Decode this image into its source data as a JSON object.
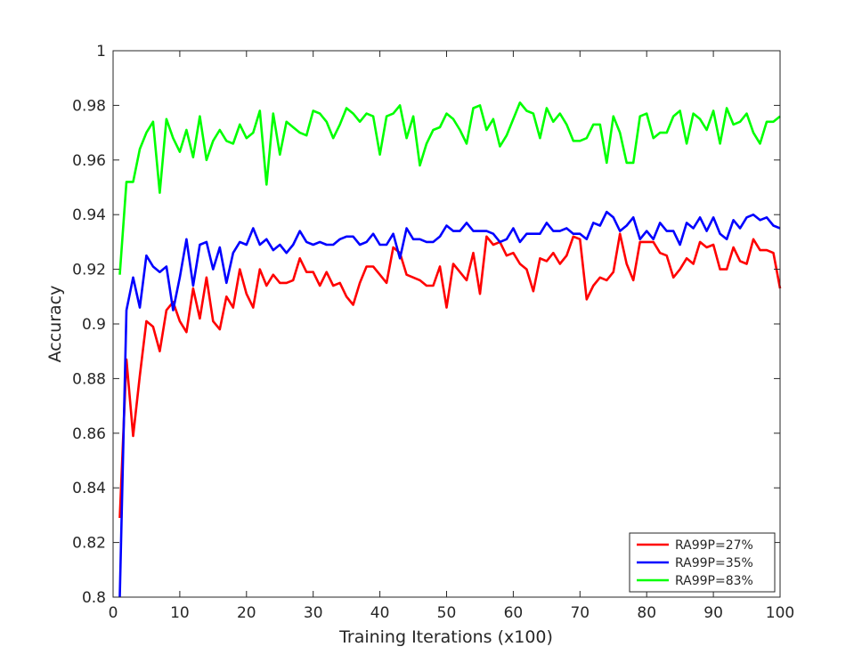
{
  "chart_data": {
    "type": "line",
    "title": "",
    "xlabel": "Training Iterations (x100)",
    "ylabel": "Accuracy",
    "xlim": [
      0,
      100
    ],
    "ylim": [
      0.8,
      1
    ],
    "x_ticks": [
      0,
      10,
      20,
      30,
      40,
      50,
      60,
      70,
      80,
      90,
      100
    ],
    "y_ticks": [
      0.8,
      0.82,
      0.84,
      0.86,
      0.88,
      0.9,
      0.92,
      0.94,
      0.96,
      0.98,
      1
    ],
    "x_tick_labels": [
      "0",
      "10",
      "20",
      "30",
      "40",
      "50",
      "60",
      "70",
      "80",
      "90",
      "100"
    ],
    "y_tick_labels": [
      "0.8",
      "0.82",
      "0.84",
      "0.86",
      "0.88",
      "0.9",
      "0.92",
      "0.94",
      "0.96",
      "0.98",
      "1"
    ],
    "grid": false,
    "legend_position": "bottom-right",
    "x": [
      1,
      2,
      3,
      4,
      5,
      6,
      7,
      8,
      9,
      10,
      11,
      12,
      13,
      14,
      15,
      16,
      17,
      18,
      19,
      20,
      21,
      22,
      23,
      24,
      25,
      26,
      27,
      28,
      29,
      30,
      31,
      32,
      33,
      34,
      35,
      36,
      37,
      38,
      39,
      40,
      41,
      42,
      43,
      44,
      45,
      46,
      47,
      48,
      49,
      50,
      51,
      52,
      53,
      54,
      55,
      56,
      57,
      58,
      59,
      60,
      61,
      62,
      63,
      64,
      65,
      66,
      67,
      68,
      69,
      70,
      71,
      72,
      73,
      74,
      75,
      76,
      77,
      78,
      79,
      80,
      81,
      82,
      83,
      84,
      85,
      86,
      87,
      88,
      89,
      90,
      91,
      92,
      93,
      94,
      95,
      96,
      97,
      98,
      99,
      100
    ],
    "series": [
      {
        "name": "RA99P=27%",
        "color": "#ff0000",
        "values": [
          0.829,
          0.887,
          0.859,
          0.881,
          0.901,
          0.899,
          0.89,
          0.905,
          0.908,
          0.901,
          0.897,
          0.913,
          0.902,
          0.917,
          0.901,
          0.898,
          0.91,
          0.906,
          0.92,
          0.911,
          0.906,
          0.92,
          0.914,
          0.918,
          0.915,
          0.915,
          0.916,
          0.924,
          0.919,
          0.919,
          0.914,
          0.919,
          0.914,
          0.915,
          0.91,
          0.907,
          0.915,
          0.921,
          0.921,
          0.918,
          0.915,
          0.928,
          0.926,
          0.918,
          0.917,
          0.916,
          0.914,
          0.914,
          0.921,
          0.906,
          0.922,
          0.919,
          0.916,
          0.926,
          0.911,
          0.932,
          0.929,
          0.93,
          0.925,
          0.926,
          0.922,
          0.92,
          0.912,
          0.924,
          0.923,
          0.926,
          0.922,
          0.925,
          0.932,
          0.931,
          0.909,
          0.914,
          0.917,
          0.916,
          0.919,
          0.933,
          0.922,
          0.916,
          0.93,
          0.93,
          0.93,
          0.926,
          0.925,
          0.917,
          0.92,
          0.924,
          0.922,
          0.93,
          0.928,
          0.929,
          0.92,
          0.92,
          0.928,
          0.923,
          0.922,
          0.931,
          0.927,
          0.927,
          0.926,
          0.913
        ]
      },
      {
        "name": "RA99P=35%",
        "color": "#0000ff",
        "values": [
          0.8,
          0.905,
          0.917,
          0.906,
          0.925,
          0.921,
          0.919,
          0.921,
          0.905,
          0.917,
          0.931,
          0.914,
          0.929,
          0.93,
          0.92,
          0.928,
          0.915,
          0.926,
          0.93,
          0.929,
          0.935,
          0.929,
          0.931,
          0.927,
          0.929,
          0.926,
          0.929,
          0.934,
          0.93,
          0.929,
          0.93,
          0.929,
          0.929,
          0.931,
          0.932,
          0.932,
          0.929,
          0.93,
          0.933,
          0.929,
          0.929,
          0.933,
          0.924,
          0.935,
          0.931,
          0.931,
          0.93,
          0.93,
          0.932,
          0.936,
          0.934,
          0.934,
          0.937,
          0.934,
          0.934,
          0.934,
          0.933,
          0.93,
          0.931,
          0.935,
          0.93,
          0.933,
          0.933,
          0.933,
          0.937,
          0.934,
          0.934,
          0.935,
          0.933,
          0.933,
          0.931,
          0.937,
          0.936,
          0.941,
          0.939,
          0.934,
          0.936,
          0.939,
          0.931,
          0.934,
          0.931,
          0.937,
          0.934,
          0.934,
          0.929,
          0.937,
          0.935,
          0.939,
          0.934,
          0.939,
          0.933,
          0.931,
          0.938,
          0.935,
          0.939,
          0.94,
          0.938,
          0.939,
          0.936,
          0.935
        ]
      },
      {
        "name": "RA99P=83%",
        "color": "#00ff00",
        "values": [
          0.918,
          0.952,
          0.952,
          0.964,
          0.97,
          0.974,
          0.948,
          0.975,
          0.968,
          0.963,
          0.971,
          0.961,
          0.976,
          0.96,
          0.967,
          0.971,
          0.967,
          0.966,
          0.973,
          0.968,
          0.97,
          0.978,
          0.951,
          0.977,
          0.962,
          0.974,
          0.972,
          0.97,
          0.969,
          0.978,
          0.977,
          0.974,
          0.968,
          0.973,
          0.979,
          0.977,
          0.974,
          0.977,
          0.976,
          0.962,
          0.976,
          0.977,
          0.98,
          0.968,
          0.976,
          0.958,
          0.966,
          0.971,
          0.972,
          0.977,
          0.975,
          0.971,
          0.966,
          0.979,
          0.98,
          0.971,
          0.975,
          0.965,
          0.969,
          0.975,
          0.981,
          0.978,
          0.977,
          0.968,
          0.979,
          0.974,
          0.977,
          0.973,
          0.967,
          0.967,
          0.968,
          0.973,
          0.973,
          0.959,
          0.976,
          0.97,
          0.959,
          0.959,
          0.976,
          0.977,
          0.968,
          0.97,
          0.97,
          0.976,
          0.978,
          0.966,
          0.977,
          0.975,
          0.971,
          0.978,
          0.966,
          0.979,
          0.973,
          0.974,
          0.977,
          0.97,
          0.966,
          0.974,
          0.974,
          0.976
        ]
      }
    ]
  }
}
